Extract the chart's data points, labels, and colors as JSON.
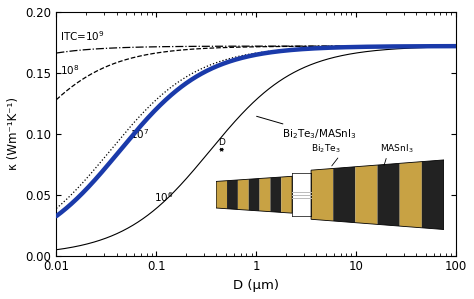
{
  "title": "",
  "xlabel": "D (μm)",
  "ylabel": "κ (Wm⁻¹K⁻¹)",
  "xlim": [
    0.01,
    100
  ],
  "ylim": [
    0.0,
    0.2
  ],
  "kappa_bulk": 0.172,
  "line_color_hybrid": "#1a3aaa",
  "background_color": "#ffffff",
  "ITC_9_label": "ITC=10$^9$",
  "ITC_8_label": "10$^8$",
  "ITC_7_label": "10$^7$",
  "ITC_6_label": "10$^6$",
  "hybrid_label": "Bi$_2$Te$_3$/MASnI$_3$",
  "inset_label_bi2te3": "Bi$_2$Te$_3$",
  "inset_label_masni3": "MASnI$_3$",
  "inset_label_D": "D",
  "layer_color_gold": "#c8a244",
  "layer_color_black": "#222222"
}
